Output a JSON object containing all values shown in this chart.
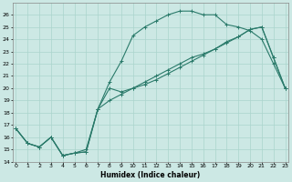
{
  "xlabel": "Humidex (Indice chaleur)",
  "bg_color": "#cce8e4",
  "grid_color": "#aad4cc",
  "line_color": "#2a7a6a",
  "series1_x": [
    0,
    1,
    2,
    3,
    4,
    5,
    6,
    7,
    8,
    9,
    10,
    11,
    12,
    13,
    14,
    15,
    16,
    17,
    18,
    19,
    20,
    21,
    22,
    23
  ],
  "series1_y": [
    16.7,
    15.5,
    15.2,
    16.0,
    14.5,
    14.7,
    15.0,
    18.3,
    20.0,
    19.7,
    20.0,
    20.3,
    20.7,
    21.2,
    21.7,
    22.2,
    22.7,
    23.2,
    23.7,
    24.2,
    24.8,
    25.0,
    22.5,
    20.0
  ],
  "series2_x": [
    0,
    1,
    2,
    3,
    4,
    5,
    6,
    7,
    8,
    9,
    10,
    11,
    12,
    13,
    14,
    15,
    16,
    17,
    18,
    19,
    20,
    21,
    22,
    23
  ],
  "series2_y": [
    16.7,
    15.5,
    15.2,
    16.0,
    14.5,
    14.7,
    14.8,
    18.3,
    20.5,
    22.2,
    24.3,
    25.0,
    25.5,
    26.0,
    26.3,
    26.3,
    26.0,
    26.0,
    25.2,
    25.0,
    24.7,
    24.0,
    22.0,
    20.0
  ],
  "series3_x": [
    0,
    1,
    2,
    3,
    4,
    5,
    6,
    7,
    8,
    9,
    10,
    11,
    12,
    13,
    14,
    15,
    16,
    17,
    18,
    19,
    20,
    21,
    22,
    23
  ],
  "series3_y": [
    16.7,
    15.5,
    15.2,
    16.0,
    14.5,
    14.7,
    14.8,
    18.3,
    19.0,
    19.5,
    20.0,
    20.5,
    21.0,
    21.5,
    22.0,
    22.5,
    22.8,
    23.2,
    23.8,
    24.2,
    24.8,
    25.0,
    22.5,
    20.0
  ],
  "xlim": [
    0,
    23
  ],
  "ylim": [
    14,
    27
  ],
  "yticks": [
    14,
    15,
    16,
    17,
    18,
    19,
    20,
    21,
    22,
    23,
    24,
    25,
    26
  ],
  "xticks": [
    0,
    1,
    2,
    3,
    4,
    5,
    6,
    7,
    8,
    9,
    10,
    11,
    12,
    13,
    14,
    15,
    16,
    17,
    18,
    19,
    20,
    21,
    22,
    23
  ],
  "xtick_labels": [
    "0",
    "1",
    "2",
    "3",
    "4",
    "5",
    "6",
    "7",
    "8",
    "9",
    "10",
    "11",
    "12",
    "13",
    "14",
    "15",
    "16",
    "17",
    "18",
    "19",
    "20",
    "21",
    "22",
    "23"
  ],
  "figsize": [
    3.2,
    2.0
  ],
  "dpi": 100
}
